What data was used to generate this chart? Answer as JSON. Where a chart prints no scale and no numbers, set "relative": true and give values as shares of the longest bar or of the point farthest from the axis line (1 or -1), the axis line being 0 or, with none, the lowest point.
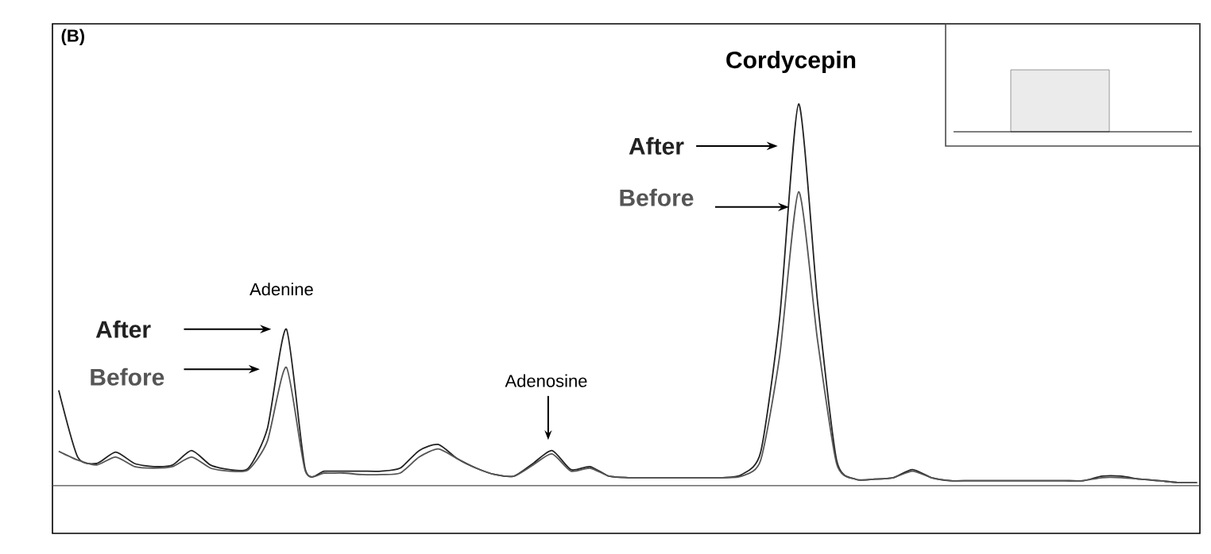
{
  "chart_data": {
    "type": "line",
    "relative": true,
    "categories": [
      null,
      null,
      null,
      null,
      null,
      null,
      null,
      null,
      null,
      null,
      null,
      null,
      null,
      null,
      null,
      null,
      null,
      null,
      null,
      null,
      null,
      null,
      null,
      null,
      null,
      null,
      null,
      null,
      null,
      null,
      null,
      null,
      null,
      null,
      null,
      null,
      null,
      null,
      null,
      null,
      null,
      null,
      null,
      null,
      null,
      null,
      null,
      null,
      null,
      null,
      null,
      null,
      null,
      null,
      null,
      null,
      null,
      null,
      null,
      null,
      null
    ],
    "series": [
      {
        "name": "After",
        "color": "#222222",
        "values": [
          0.25,
          0.075,
          0.058,
          0.088,
          0.058,
          0.05,
          0.054,
          0.092,
          0.054,
          0.042,
          0.046,
          0.15,
          0.41,
          0.042,
          0.038,
          0.038,
          0.038,
          0.038,
          0.046,
          0.092,
          0.108,
          0.071,
          0.046,
          0.029,
          0.025,
          0.058,
          0.092,
          0.042,
          0.05,
          0.025,
          0.021,
          0.021,
          0.021,
          0.021,
          0.021,
          0.021,
          0.029,
          0.088,
          0.44,
          1,
          0.48,
          0.067,
          0.017,
          0.017,
          0.021,
          0.042,
          0.021,
          0.013,
          0.013,
          0.013,
          0.013,
          0.013,
          0.013,
          0.013,
          0.013,
          0.025,
          0.025,
          0.017,
          0.013,
          0.008,
          0.008
        ]
      },
      {
        "name": "Before",
        "color": "#555555",
        "values": [
          0.09,
          0.067,
          0.054,
          0.075,
          0.05,
          0.046,
          0.05,
          0.075,
          0.046,
          0.038,
          0.042,
          0.117,
          0.31,
          0.038,
          0.033,
          0.033,
          0.029,
          0.029,
          0.033,
          0.075,
          0.096,
          0.071,
          0.046,
          0.029,
          0.025,
          0.054,
          0.083,
          0.038,
          0.046,
          0.025,
          0.021,
          0.021,
          0.021,
          0.021,
          0.021,
          0.021,
          0.025,
          0.067,
          0.34,
          0.77,
          0.38,
          0.058,
          0.017,
          0.017,
          0.021,
          0.038,
          0.021,
          0.013,
          0.013,
          0.013,
          0.013,
          0.013,
          0.013,
          0.013,
          0.013,
          0.021,
          0.021,
          0.017,
          0.013,
          0.008,
          0.008
        ]
      }
    ],
    "annotations": [
      "(B)",
      "Adenine",
      "Adenosine",
      "Cordycepin"
    ]
  }
}
